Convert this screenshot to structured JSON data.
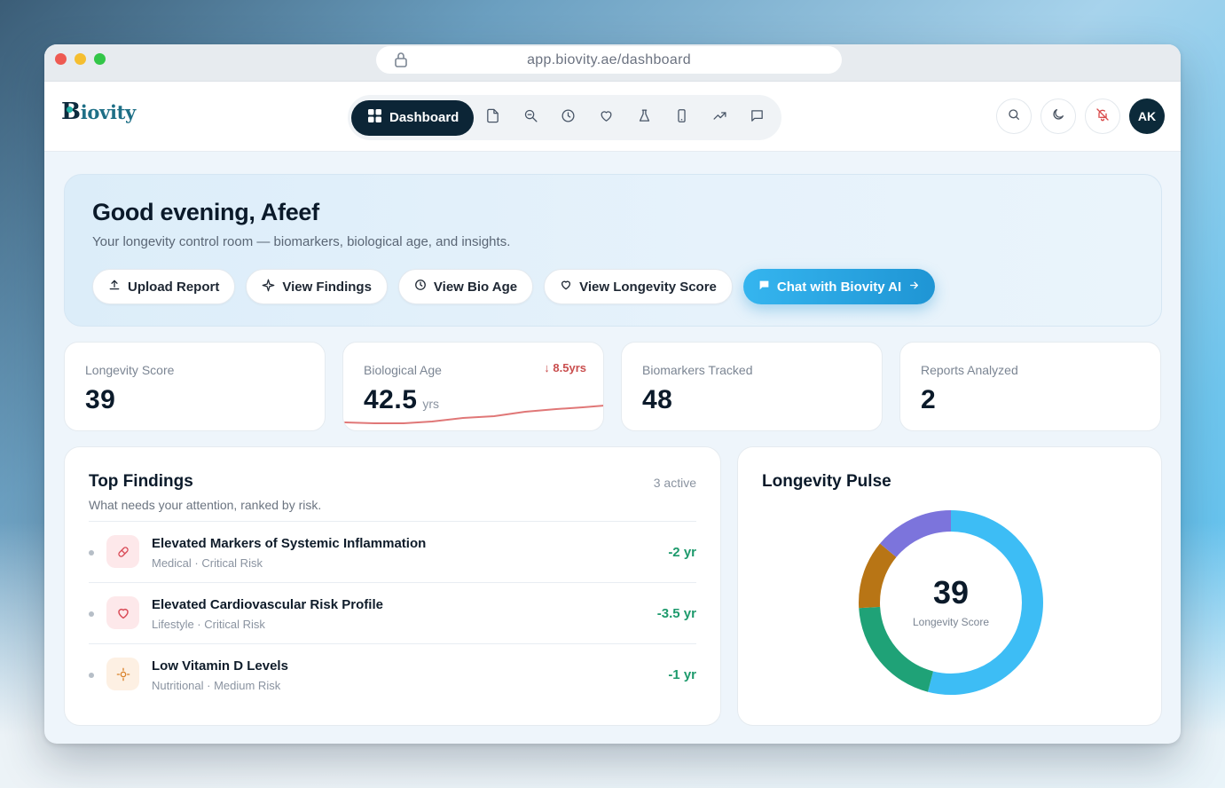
{
  "browser": {
    "url": "app.biovity.ae/dashboard"
  },
  "brand": {
    "logo_b": "B",
    "logo_rest": "iovity"
  },
  "nav": {
    "active_label": "Dashboard",
    "icons": [
      "document-icon",
      "search-zoom-icon",
      "clock-icon",
      "heart-icon",
      "flask-icon",
      "phone-icon",
      "trending-up-icon",
      "message-icon"
    ]
  },
  "user": {
    "initials": "AK"
  },
  "hero": {
    "greeting": "Good evening, Afeef",
    "subtitle": "Your longevity control room — biomarkers, biological age, and insights.",
    "actions": [
      {
        "label": "Upload Report",
        "icon": "upload-icon"
      },
      {
        "label": "View Findings",
        "icon": "sparkle-icon"
      },
      {
        "label": "View Bio Age",
        "icon": "clock-icon"
      },
      {
        "label": "View Longevity Score",
        "icon": "heart-icon"
      },
      {
        "label": "Chat with Biovity AI",
        "icon": "chat-icon",
        "primary": true
      }
    ]
  },
  "stats": [
    {
      "label": "Longevity Score",
      "value": "39"
    },
    {
      "label": "Biological Age",
      "value": "42.5",
      "unit": "yrs",
      "delta": "8.5yrs"
    },
    {
      "label": "Biomarkers Tracked",
      "value": "48"
    },
    {
      "label": "Reports Analyzed",
      "value": "2"
    }
  ],
  "findings": {
    "title": "Top Findings",
    "subtitle": "What needs your attention, ranked by risk.",
    "count": "3 active",
    "items": [
      {
        "title": "Elevated Markers of Systemic Inflammation",
        "meta": "Medical · Critical Risk",
        "delta": "-2 yr",
        "icon": "pill-icon",
        "color": "#fde8ea"
      },
      {
        "title": "Elevated Cardiovascular Risk Profile",
        "meta": "Lifestyle · Critical Risk",
        "delta": "-3.5 yr",
        "icon": "heart-icon",
        "color": "#fde8ea"
      },
      {
        "title": "Low Vitamin D Levels",
        "meta": "Nutritional · Medium Risk",
        "delta": "-1 yr",
        "icon": "sun-icon",
        "color": "#fdf0e3"
      }
    ]
  },
  "pulse": {
    "title": "Longevity Pulse",
    "score": "39",
    "score_label": "Longevity Score",
    "segments": [
      {
        "color": "#3dbdf5",
        "value": 0.54
      },
      {
        "color": "#1fa277",
        "value": 0.2
      },
      {
        "color": "#b87515",
        "value": 0.12
      },
      {
        "color": "#7c74dc",
        "value": 0.14
      }
    ]
  }
}
